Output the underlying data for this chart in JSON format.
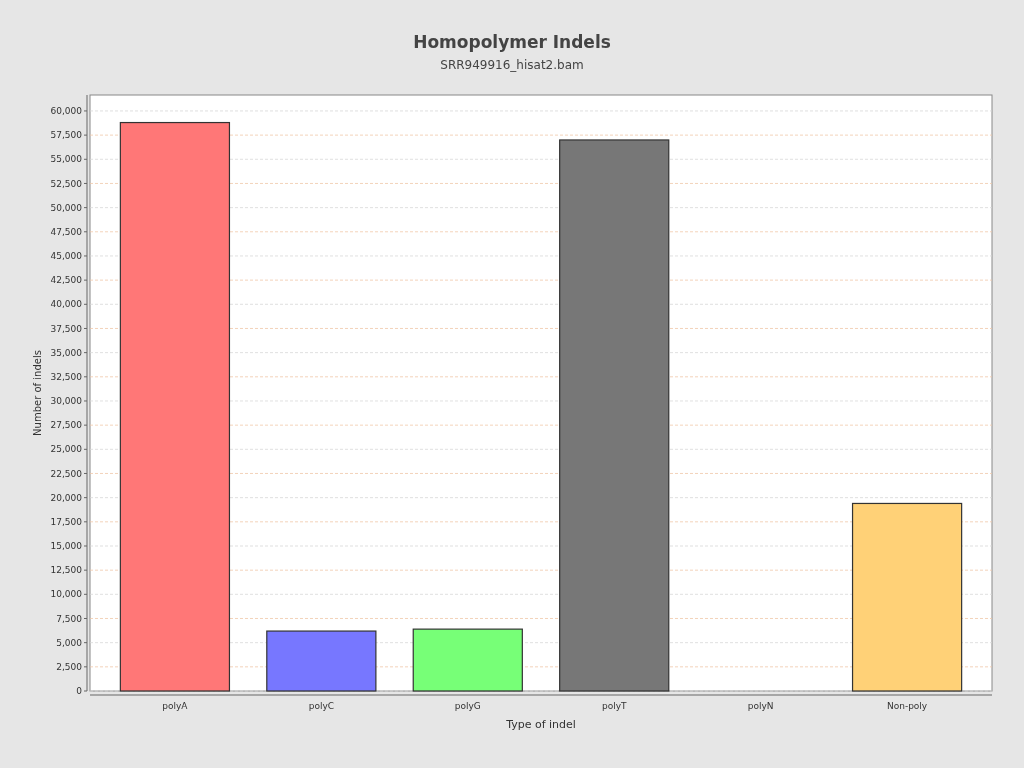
{
  "chart_data": {
    "type": "bar",
    "title": "Homopolymer Indels",
    "subtitle": "SRR949916_hisat2.bam",
    "xlabel": "Type of indel",
    "ylabel": "Number of indels",
    "categories": [
      "polyA",
      "polyC",
      "polyG",
      "polyT",
      "polyN",
      "Non-poly"
    ],
    "values": [
      58800,
      6200,
      6400,
      57000,
      0,
      19400
    ],
    "colors": [
      "#ff7777",
      "#7777ff",
      "#77ff77",
      "#777777",
      "#c8c8c8",
      "#ffd177"
    ],
    "ylim": [
      0,
      61650
    ],
    "yticks": [
      {
        "value": 0,
        "label": "0"
      },
      {
        "value": 2500,
        "label": "2,500"
      },
      {
        "value": 5000,
        "label": "5,000"
      },
      {
        "value": 7500,
        "label": "7,500"
      },
      {
        "value": 10000,
        "label": "10,000"
      },
      {
        "value": 12500,
        "label": "12,500"
      },
      {
        "value": 15000,
        "label": "15,000"
      },
      {
        "value": 17500,
        "label": "17,500"
      },
      {
        "value": 20000,
        "label": "20,000"
      },
      {
        "value": 22500,
        "label": "22,500"
      },
      {
        "value": 25000,
        "label": "25,000"
      },
      {
        "value": 27500,
        "label": "27,500"
      },
      {
        "value": 30000,
        "label": "30,000"
      },
      {
        "value": 32500,
        "label": "32,500"
      },
      {
        "value": 35000,
        "label": "35,000"
      },
      {
        "value": 37500,
        "label": "37,500"
      },
      {
        "value": 40000,
        "label": "40,000"
      },
      {
        "value": 42500,
        "label": "42,500"
      },
      {
        "value": 45000,
        "label": "45,000"
      },
      {
        "value": 47500,
        "label": "47,500"
      },
      {
        "value": 50000,
        "label": "50,000"
      },
      {
        "value": 52500,
        "label": "52,500"
      },
      {
        "value": 55000,
        "label": "55,000"
      },
      {
        "value": 57500,
        "label": "57,500"
      },
      {
        "value": 60000,
        "label": "60,000"
      }
    ],
    "grid": "y"
  }
}
